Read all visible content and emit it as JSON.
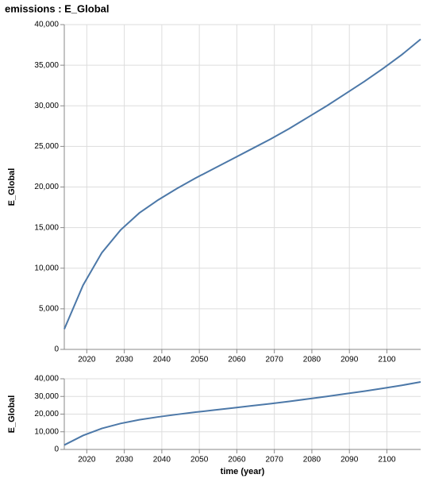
{
  "chart_data": [
    {
      "type": "line",
      "title": "emissions : E_Global",
      "y_label": "E_Global",
      "x": [
        2014,
        2019,
        2024,
        2029,
        2034,
        2039,
        2044,
        2049,
        2054,
        2059,
        2064,
        2069,
        2074,
        2079,
        2084,
        2089,
        2094,
        2099,
        2104,
        2109
      ],
      "values": [
        2500,
        7900,
        11900,
        14700,
        16800,
        18400,
        19800,
        21100,
        22300,
        23500,
        24700,
        25900,
        27200,
        28600,
        30000,
        31500,
        33000,
        34600,
        36300,
        38200
      ],
      "color": "#4c78a8",
      "xlim": [
        2014,
        2109
      ],
      "xticks": [
        2020,
        2030,
        2040,
        2050,
        2060,
        2070,
        2080,
        2090,
        2100
      ],
      "ylim": [
        0,
        40000
      ],
      "yticks": [
        0,
        {
          "value": 5000,
          "label": "5,000"
        },
        {
          "value": 10000,
          "label": "10,000"
        },
        {
          "value": 15000,
          "label": "15,000"
        },
        {
          "value": 20000,
          "label": "20,000"
        },
        {
          "value": 25000,
          "label": "25,000"
        },
        {
          "value": 30000,
          "label": "30,000"
        },
        {
          "value": 35000,
          "label": "35,000"
        },
        {
          "value": 40000,
          "label": "40,000"
        }
      ],
      "grid": true
    },
    {
      "type": "line",
      "y_label": "E_Global",
      "x_label": "time (year)",
      "x": [
        2014,
        2019,
        2024,
        2029,
        2034,
        2039,
        2044,
        2049,
        2054,
        2059,
        2064,
        2069,
        2074,
        2079,
        2084,
        2089,
        2094,
        2099,
        2104,
        2109
      ],
      "values": [
        2500,
        7900,
        11900,
        14700,
        16800,
        18400,
        19800,
        21100,
        22300,
        23500,
        24700,
        25900,
        27200,
        28600,
        30000,
        31500,
        33000,
        34600,
        36300,
        38200
      ],
      "color": "#4c78a8",
      "xlim": [
        2014,
        2109
      ],
      "xticks": [
        2020,
        2030,
        2040,
        2050,
        2060,
        2070,
        2080,
        2090,
        2100
      ],
      "ylim": [
        0,
        40000
      ],
      "yticks": [
        0,
        {
          "value": 10000,
          "label": "10,000"
        },
        {
          "value": 20000,
          "label": "20,000"
        },
        {
          "value": 30000,
          "label": "30,000"
        },
        {
          "value": 40000,
          "label": "40,000"
        }
      ],
      "grid": true
    }
  ]
}
